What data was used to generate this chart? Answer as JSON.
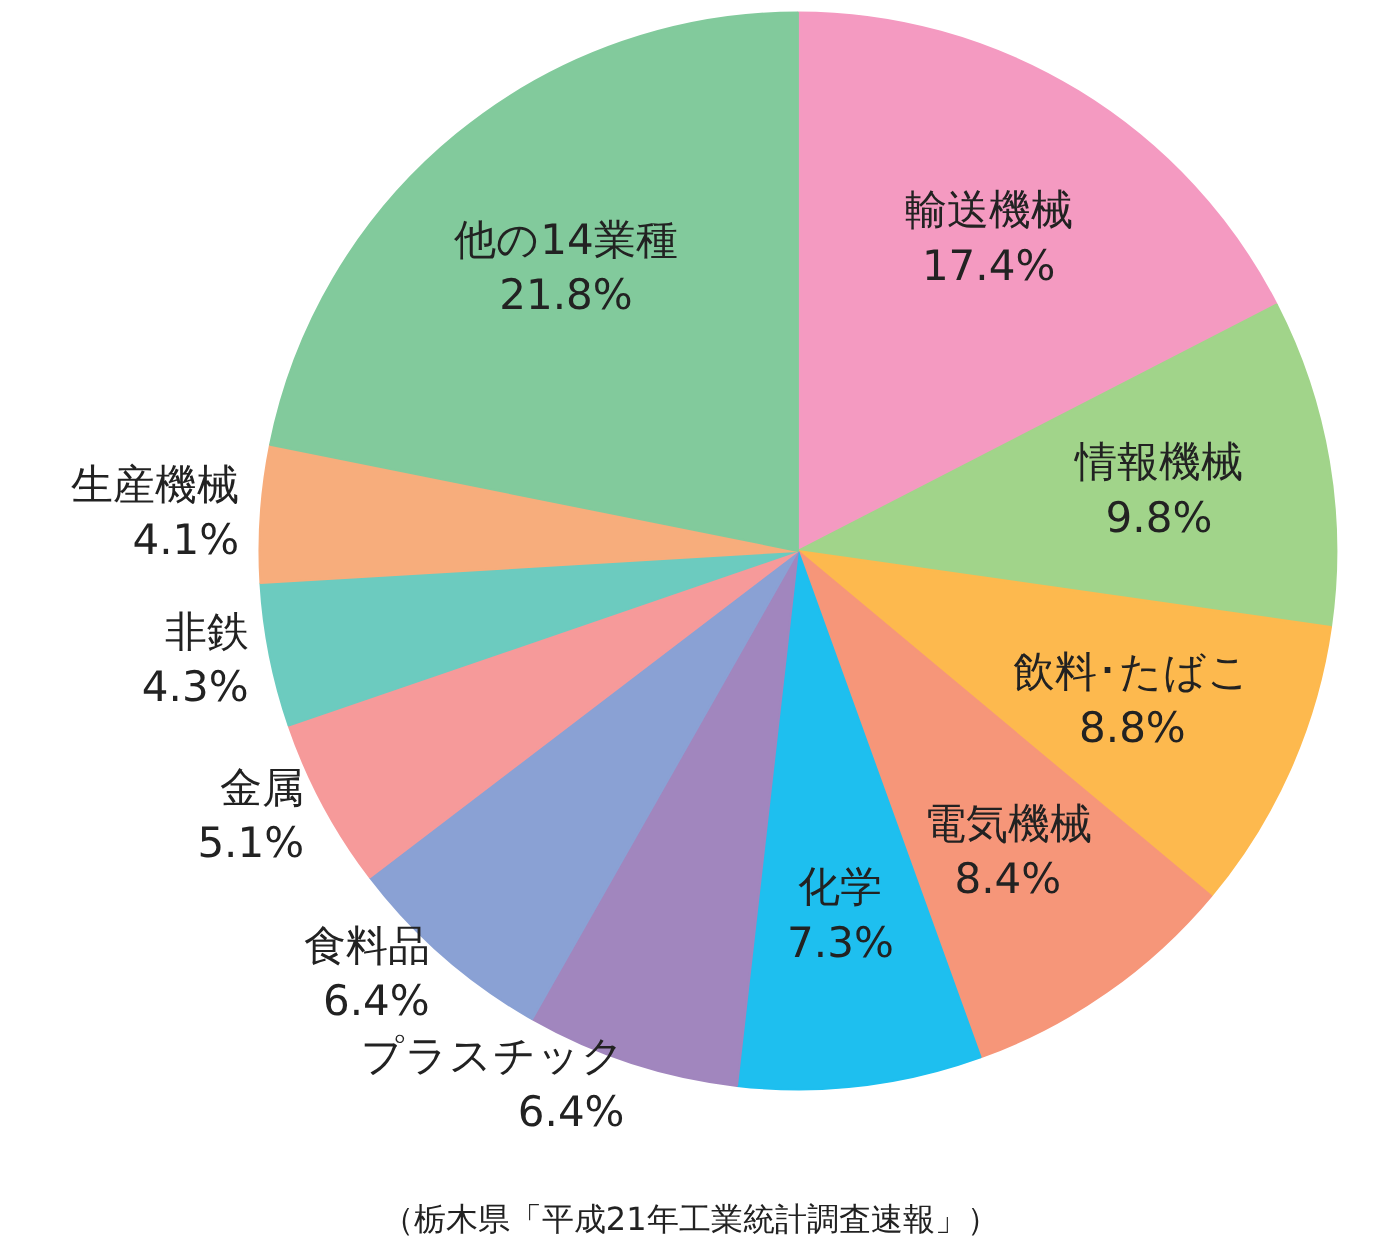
{
  "chart_data": {
    "type": "pie",
    "categories": [
      "輸送機械",
      "情報機械",
      "飲料･たばこ",
      "電気機械",
      "化学",
      "プラスチック",
      "食料品",
      "金属",
      "非鉄",
      "生産機械",
      "他の14業種"
    ],
    "values": [
      17.4,
      9.8,
      8.8,
      8.4,
      7.3,
      6.4,
      6.4,
      5.1,
      4.3,
      4.1,
      21.8
    ],
    "colors": [
      "#f49ac1",
      "#a1d48a",
      "#fdb94e",
      "#f69679",
      "#1ebfef",
      "#a186be",
      "#8aa1d4",
      "#f69a9a",
      "#6ccbbf",
      "#f7ad7c",
      "#82ca9c"
    ],
    "value_labels": [
      "17.4%",
      "9.8%",
      "8.8%",
      "8.4%",
      "7.3%",
      "6.4%",
      "6.4%",
      "5.1%",
      "4.3%",
      "4.1%",
      "21.8%"
    ],
    "annotations": [
      "（栃木県「平成21年工業統計調査速報」）"
    ]
  }
}
